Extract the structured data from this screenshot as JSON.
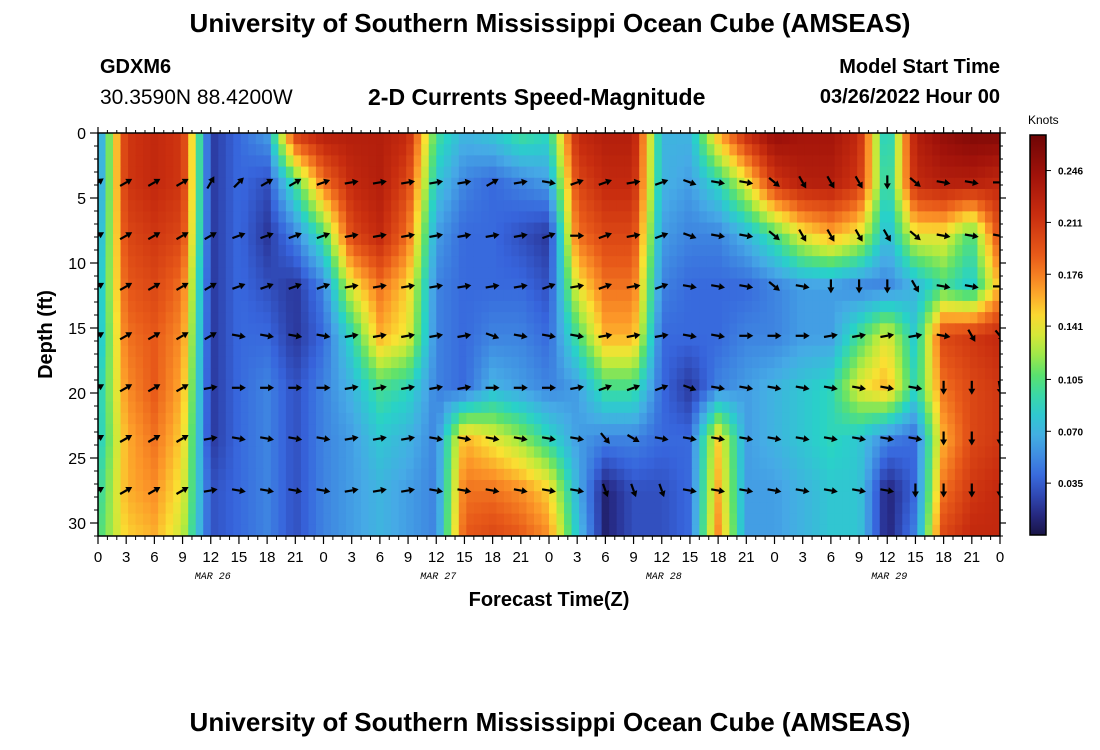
{
  "header": {
    "title": "University of Southern Mississippi Ocean Cube (AMSEAS)",
    "station": "GDXM6",
    "coords": "30.3590N  88.4200W",
    "subtitle": "2-D Currents Speed-Magnitude",
    "start_label": "Model Start Time",
    "start_value": "03/26/2022 Hour 00"
  },
  "footer": {
    "title": "University of Southern Mississippi Ocean Cube (AMSEAS)"
  },
  "chart_data": {
    "type": "heatmap",
    "title": "2-D Currents Speed-Magnitude",
    "xlabel": "Forecast Time(Z)",
    "ylabel": "Depth (ft)",
    "x_unit": "hours since 03/26/2022 00Z",
    "xlim": [
      0,
      96
    ],
    "ylim": [
      0,
      31
    ],
    "y_reversed": true,
    "x_ticks": [
      0,
      3,
      6,
      9,
      12,
      15,
      18,
      21,
      24,
      27,
      30,
      33,
      36,
      39,
      42,
      45,
      48,
      51,
      54,
      57,
      60,
      63,
      66,
      69,
      72,
      75,
      78,
      81,
      84,
      87,
      90,
      93,
      96
    ],
    "x_tick_labels": [
      "0",
      "3",
      "6",
      "9",
      "12",
      "15",
      "18",
      "21",
      "0",
      "3",
      "6",
      "9",
      "12",
      "15",
      "18",
      "21",
      "0",
      "3",
      "6",
      "9",
      "12",
      "15",
      "18",
      "21",
      "0",
      "3",
      "6",
      "9",
      "12",
      "15",
      "18",
      "21",
      "0"
    ],
    "day_labels": [
      {
        "label": "MAR 26",
        "hour": 12
      },
      {
        "label": "MAR 27",
        "hour": 36
      },
      {
        "label": "MAR 28",
        "hour": 60
      },
      {
        "label": "MAR 29",
        "hour": 84
      }
    ],
    "y_ticks": [
      0,
      5,
      10,
      15,
      20,
      25,
      30
    ],
    "y_tick_labels": [
      "0",
      "5",
      "10",
      "15",
      "20",
      "25",
      "30"
    ],
    "colorbar": {
      "unit": "Knots",
      "min": 0.0,
      "max": 0.27,
      "ticks": [
        0.246,
        0.211,
        0.176,
        0.141,
        0.105,
        0.07,
        0.035
      ],
      "tick_labels": [
        "0.246",
        "0.211",
        "0.176",
        "0.141",
        "0.105",
        "0.070",
        "0.035"
      ]
    },
    "depths_ft": [
      0,
      3.8,
      7.9,
      11.8,
      15.6,
      19.6,
      23.5,
      27.5,
      31
    ],
    "times_h": [
      0,
      3,
      6,
      9,
      12,
      15,
      18,
      21,
      24,
      27,
      30,
      33,
      36,
      39,
      42,
      45,
      48,
      51,
      54,
      57,
      60,
      63,
      66,
      69,
      72,
      75,
      78,
      81,
      84,
      87,
      90,
      93,
      96
    ],
    "speed_knots": [
      [
        0.05,
        0.21,
        0.22,
        0.21,
        0.02,
        0.04,
        0.06,
        0.21,
        0.23,
        0.23,
        0.23,
        0.22,
        0.1,
        0.07,
        0.08,
        0.1,
        0.09,
        0.22,
        0.23,
        0.23,
        0.07,
        0.07,
        0.16,
        0.22,
        0.25,
        0.24,
        0.24,
        0.22,
        0.07,
        0.23,
        0.25,
        0.26,
        0.26
      ],
      [
        0.05,
        0.21,
        0.22,
        0.21,
        0.02,
        0.04,
        0.03,
        0.1,
        0.18,
        0.22,
        0.23,
        0.2,
        0.08,
        0.05,
        0.04,
        0.05,
        0.06,
        0.2,
        0.22,
        0.22,
        0.07,
        0.06,
        0.09,
        0.14,
        0.21,
        0.23,
        0.23,
        0.21,
        0.08,
        0.22,
        0.23,
        0.23,
        0.22
      ],
      [
        0.06,
        0.2,
        0.21,
        0.2,
        0.02,
        0.04,
        0.02,
        0.05,
        0.1,
        0.2,
        0.22,
        0.18,
        0.06,
        0.04,
        0.04,
        0.03,
        0.02,
        0.18,
        0.2,
        0.2,
        0.06,
        0.05,
        0.05,
        0.07,
        0.1,
        0.14,
        0.16,
        0.14,
        0.07,
        0.14,
        0.14,
        0.1,
        0.2
      ],
      [
        0.07,
        0.19,
        0.2,
        0.18,
        0.02,
        0.04,
        0.03,
        0.02,
        0.05,
        0.14,
        0.18,
        0.15,
        0.05,
        0.04,
        0.04,
        0.04,
        0.03,
        0.14,
        0.18,
        0.18,
        0.05,
        0.04,
        0.04,
        0.04,
        0.05,
        0.06,
        0.06,
        0.05,
        0.05,
        0.07,
        0.1,
        0.08,
        0.16
      ],
      [
        0.07,
        0.18,
        0.19,
        0.17,
        0.02,
        0.04,
        0.04,
        0.02,
        0.04,
        0.09,
        0.16,
        0.14,
        0.05,
        0.04,
        0.05,
        0.05,
        0.04,
        0.1,
        0.16,
        0.16,
        0.04,
        0.04,
        0.04,
        0.05,
        0.05,
        0.06,
        0.06,
        0.1,
        0.14,
        0.08,
        0.2,
        0.21,
        0.22
      ],
      [
        0.08,
        0.17,
        0.19,
        0.16,
        0.02,
        0.04,
        0.05,
        0.03,
        0.05,
        0.07,
        0.1,
        0.09,
        0.05,
        0.04,
        0.07,
        0.06,
        0.05,
        0.06,
        0.1,
        0.1,
        0.04,
        0.02,
        0.05,
        0.06,
        0.07,
        0.08,
        0.09,
        0.14,
        0.16,
        0.09,
        0.18,
        0.2,
        0.21
      ],
      [
        0.08,
        0.16,
        0.18,
        0.15,
        0.02,
        0.04,
        0.05,
        0.03,
        0.05,
        0.06,
        0.08,
        0.07,
        0.05,
        0.16,
        0.14,
        0.12,
        0.09,
        0.06,
        0.05,
        0.05,
        0.04,
        0.04,
        0.15,
        0.06,
        0.07,
        0.08,
        0.09,
        0.08,
        0.05,
        0.04,
        0.16,
        0.2,
        0.21
      ],
      [
        0.09,
        0.16,
        0.17,
        0.14,
        0.03,
        0.04,
        0.05,
        0.03,
        0.05,
        0.06,
        0.07,
        0.06,
        0.05,
        0.18,
        0.18,
        0.17,
        0.15,
        0.07,
        0.01,
        0.03,
        0.03,
        0.04,
        0.16,
        0.06,
        0.06,
        0.07,
        0.08,
        0.08,
        0.01,
        0.04,
        0.18,
        0.21,
        0.22
      ],
      [
        0.1,
        0.15,
        0.16,
        0.13,
        0.03,
        0.04,
        0.05,
        0.03,
        0.05,
        0.06,
        0.07,
        0.06,
        0.05,
        0.19,
        0.2,
        0.19,
        0.17,
        0.08,
        0.01,
        0.03,
        0.03,
        0.04,
        0.17,
        0.06,
        0.06,
        0.07,
        0.08,
        0.08,
        0.01,
        0.05,
        0.2,
        0.22,
        0.22
      ]
    ],
    "arrow_depths_ft": [
      3.8,
      7.9,
      11.8,
      15.6,
      19.6,
      23.5,
      27.5
    ],
    "arrow_times_h": [
      0,
      3,
      6,
      9,
      12,
      15,
      18,
      21,
      24,
      27,
      30,
      33,
      36,
      39,
      42,
      45,
      48,
      51,
      54,
      57,
      60,
      63,
      66,
      69,
      72,
      75,
      78,
      81,
      84,
      87,
      90,
      93,
      96
    ],
    "arrow_direction_deg": [
      [
        55,
        60,
        60,
        60,
        30,
        45,
        60,
        60,
        70,
        80,
        80,
        80,
        80,
        80,
        60,
        80,
        100,
        70,
        70,
        80,
        70,
        110,
        100,
        100,
        130,
        150,
        150,
        150,
        180,
        130,
        100,
        100,
        90
      ],
      [
        60,
        60,
        60,
        60,
        60,
        70,
        70,
        70,
        70,
        80,
        80,
        80,
        80,
        80,
        80,
        80,
        70,
        90,
        70,
        80,
        70,
        110,
        100,
        100,
        130,
        150,
        150,
        150,
        150,
        130,
        100,
        100,
        100
      ],
      [
        60,
        60,
        60,
        60,
        60,
        70,
        70,
        70,
        70,
        80,
        80,
        80,
        80,
        80,
        80,
        80,
        70,
        80,
        70,
        80,
        70,
        100,
        100,
        100,
        130,
        100,
        180,
        180,
        180,
        150,
        100,
        100,
        90
      ],
      [
        60,
        60,
        60,
        60,
        60,
        100,
        100,
        100,
        100,
        80,
        80,
        80,
        80,
        80,
        110,
        100,
        100,
        100,
        80,
        80,
        80,
        100,
        100,
        90,
        90,
        90,
        80,
        80,
        80,
        80,
        100,
        150,
        140
      ],
      [
        60,
        60,
        60,
        60,
        80,
        90,
        90,
        90,
        90,
        80,
        80,
        80,
        80,
        80,
        90,
        90,
        90,
        80,
        70,
        70,
        70,
        110,
        100,
        100,
        100,
        100,
        100,
        100,
        100,
        100,
        180,
        180,
        170
      ],
      [
        60,
        60,
        60,
        60,
        80,
        100,
        100,
        100,
        100,
        80,
        80,
        80,
        100,
        100,
        100,
        100,
        100,
        100,
        140,
        120,
        100,
        100,
        100,
        100,
        100,
        100,
        100,
        100,
        100,
        100,
        180,
        180,
        180
      ],
      [
        60,
        60,
        60,
        60,
        80,
        100,
        100,
        100,
        100,
        80,
        80,
        80,
        100,
        100,
        100,
        100,
        100,
        100,
        160,
        160,
        160,
        100,
        100,
        100,
        100,
        100,
        100,
        100,
        100,
        180,
        180,
        180,
        180
      ]
    ]
  }
}
